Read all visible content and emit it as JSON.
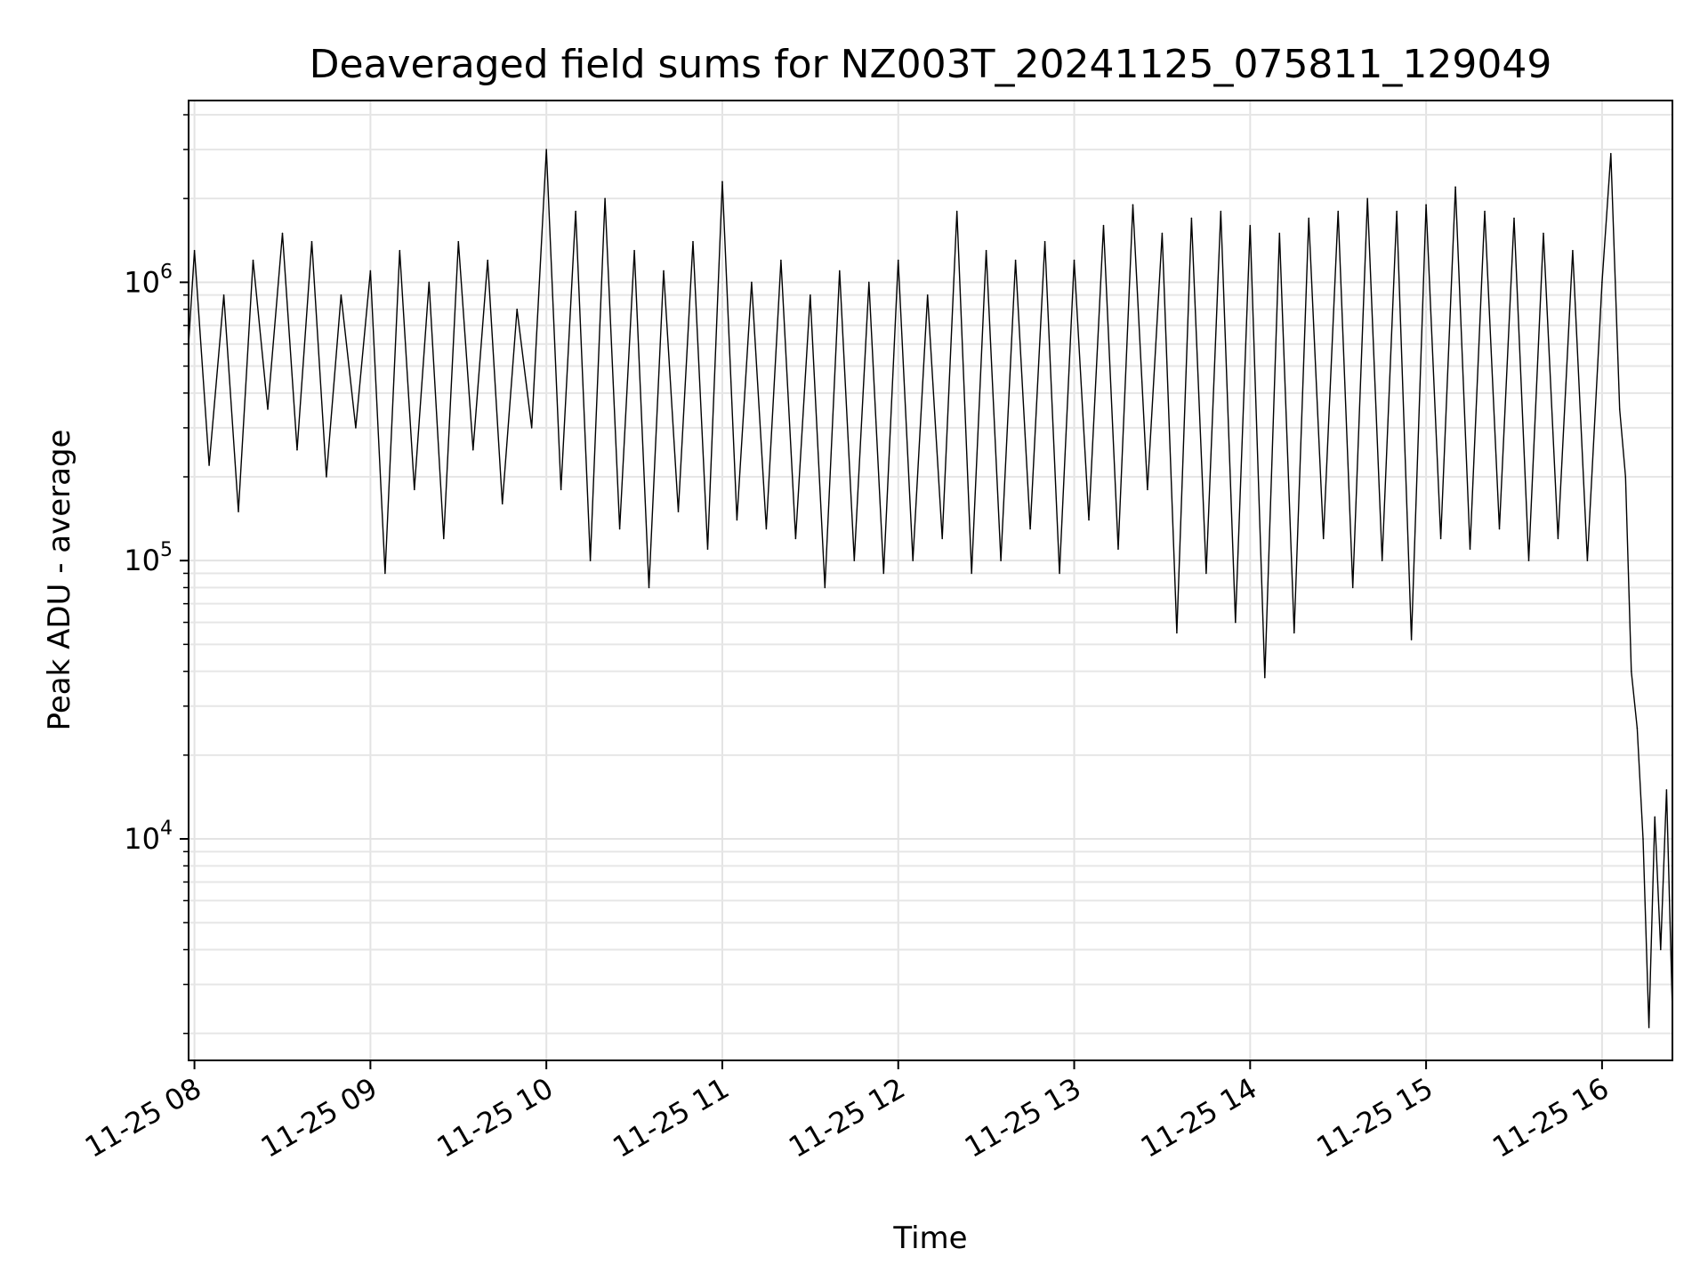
{
  "chart_data": {
    "type": "line",
    "title": "Deaveraged field sums for NZ003T_20241125_075811_129049",
    "xlabel": "Time",
    "ylabel": "Peak ADU - average",
    "yscale": "log",
    "ylim": [
      1600,
      4500000
    ],
    "xlim": [
      "11-25 07:58",
      "11-25 16:24"
    ],
    "grid": true,
    "line_color": "#000000",
    "x_ticks": [
      {
        "time": "11-25 08:00",
        "label": "11-25 08"
      },
      {
        "time": "11-25 09:00",
        "label": "11-25 09"
      },
      {
        "time": "11-25 10:00",
        "label": "11-25 10"
      },
      {
        "time": "11-25 11:00",
        "label": "11-25 11"
      },
      {
        "time": "11-25 12:00",
        "label": "11-25 12"
      },
      {
        "time": "11-25 13:00",
        "label": "11-25 13"
      },
      {
        "time": "11-25 14:00",
        "label": "11-25 14"
      },
      {
        "time": "11-25 15:00",
        "label": "11-25 15"
      },
      {
        "time": "11-25 16:00",
        "label": "11-25 16"
      }
    ],
    "y_ticks": [
      {
        "value": 10000,
        "base": "10",
        "exp": "4"
      },
      {
        "value": 100000,
        "base": "10",
        "exp": "5"
      },
      {
        "value": 1000000,
        "base": "10",
        "exp": "6"
      }
    ],
    "series": [
      {
        "x": [
          "11-25 07:58",
          "11-25 08:00",
          "11-25 08:05",
          "11-25 08:10",
          "11-25 08:15",
          "11-25 08:20",
          "11-25 08:25",
          "11-25 08:30",
          "11-25 08:35",
          "11-25 08:40",
          "11-25 08:45",
          "11-25 08:50",
          "11-25 08:55",
          "11-25 09:00",
          "11-25 09:05",
          "11-25 09:10",
          "11-25 09:15",
          "11-25 09:20",
          "11-25 09:25",
          "11-25 09:30",
          "11-25 09:35",
          "11-25 09:40",
          "11-25 09:45",
          "11-25 09:50",
          "11-25 09:55",
          "11-25 10:00",
          "11-25 10:05",
          "11-25 10:10",
          "11-25 10:15",
          "11-25 10:20",
          "11-25 10:25",
          "11-25 10:30",
          "11-25 10:35",
          "11-25 10:40",
          "11-25 10:45",
          "11-25 10:50",
          "11-25 10:55",
          "11-25 11:00",
          "11-25 11:05",
          "11-25 11:10",
          "11-25 11:15",
          "11-25 11:20",
          "11-25 11:25",
          "11-25 11:30",
          "11-25 11:35",
          "11-25 11:40",
          "11-25 11:45",
          "11-25 11:50",
          "11-25 11:55",
          "11-25 12:00",
          "11-25 12:05",
          "11-25 12:10",
          "11-25 12:15",
          "11-25 12:20",
          "11-25 12:25",
          "11-25 12:30",
          "11-25 12:35",
          "11-25 12:40",
          "11-25 12:45",
          "11-25 12:50",
          "11-25 12:55",
          "11-25 13:00",
          "11-25 13:05",
          "11-25 13:10",
          "11-25 13:15",
          "11-25 13:20",
          "11-25 13:25",
          "11-25 13:30",
          "11-25 13:35",
          "11-25 13:40",
          "11-25 13:45",
          "11-25 13:50",
          "11-25 13:55",
          "11-25 14:00",
          "11-25 14:05",
          "11-25 14:10",
          "11-25 14:15",
          "11-25 14:20",
          "11-25 14:25",
          "11-25 14:30",
          "11-25 14:35",
          "11-25 14:40",
          "11-25 14:45",
          "11-25 14:50",
          "11-25 14:55",
          "11-25 15:00",
          "11-25 15:05",
          "11-25 15:10",
          "11-25 15:15",
          "11-25 15:20",
          "11-25 15:25",
          "11-25 15:30",
          "11-25 15:35",
          "11-25 15:40",
          "11-25 15:45",
          "11-25 15:50",
          "11-25 15:55",
          "11-25 16:00",
          "11-25 16:03",
          "11-25 16:06",
          "11-25 16:08",
          "11-25 16:10",
          "11-25 16:12",
          "11-25 16:14",
          "11-25 16:16",
          "11-25 16:18",
          "11-25 16:20",
          "11-25 16:22",
          "11-25 16:24"
        ],
        "y": [
          600000,
          1300000,
          220000,
          900000,
          150000,
          1200000,
          350000,
          1500000,
          250000,
          1400000,
          200000,
          900000,
          300000,
          1100000,
          90000,
          1300000,
          180000,
          1000000,
          120000,
          1400000,
          250000,
          1200000,
          160000,
          800000,
          300000,
          3000000,
          180000,
          1800000,
          100000,
          2000000,
          130000,
          1300000,
          80000,
          1100000,
          150000,
          1400000,
          110000,
          2300000,
          140000,
          1000000,
          130000,
          1200000,
          120000,
          900000,
          80000,
          1100000,
          100000,
          1000000,
          90000,
          1200000,
          100000,
          900000,
          120000,
          1800000,
          90000,
          1300000,
          100000,
          1200000,
          130000,
          1400000,
          90000,
          1200000,
          140000,
          1600000,
          110000,
          1900000,
          180000,
          1500000,
          55000,
          1700000,
          90000,
          1800000,
          60000,
          1600000,
          38000,
          1500000,
          55000,
          1700000,
          120000,
          1800000,
          80000,
          2000000,
          100000,
          1800000,
          52000,
          1900000,
          120000,
          2200000,
          110000,
          1800000,
          130000,
          1700000,
          100000,
          1500000,
          120000,
          1300000,
          100000,
          1000000,
          2900000,
          350000,
          200000,
          40000,
          25000,
          10000,
          2100,
          12000,
          4000,
          15000,
          2400
        ]
      }
    ]
  }
}
